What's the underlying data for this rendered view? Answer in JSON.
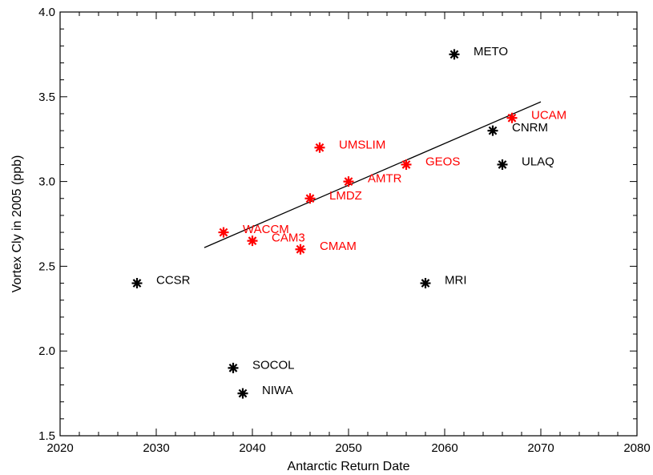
{
  "chart_data": {
    "type": "scatter",
    "xlabel": "Antarctic Return Date",
    "ylabel": "Vortex Cly in 2005 (ppb)",
    "xlim": [
      2020,
      2080
    ],
    "ylim": [
      1.5,
      4.0
    ],
    "xticks": [
      2020,
      2030,
      2040,
      2050,
      2060,
      2070,
      2080
    ],
    "yticks": [
      1.5,
      2.0,
      2.5,
      3.0,
      3.5,
      4.0
    ],
    "ytick_labels": [
      "1.5",
      "2.0",
      "2.5",
      "3.0",
      "3.5",
      "4.0"
    ],
    "grid": false,
    "colors": {
      "red": "#ff0000",
      "black": "#000000"
    },
    "points": [
      {
        "name": "METO",
        "x": 2061.0,
        "y": 3.75,
        "color": "black"
      },
      {
        "name": "UCAM",
        "x": 2067.0,
        "y": 3.375,
        "color": "red"
      },
      {
        "name": "CNRM",
        "x": 2065.0,
        "y": 3.3,
        "color": "black"
      },
      {
        "name": "ULAQ",
        "x": 2066.0,
        "y": 3.1,
        "color": "black"
      },
      {
        "name": "UMSLIM",
        "x": 2047.0,
        "y": 3.2,
        "color": "red"
      },
      {
        "name": "GEOS",
        "x": 2056.0,
        "y": 3.1,
        "color": "red"
      },
      {
        "name": "AMTR",
        "x": 2050.0,
        "y": 3.0,
        "color": "red"
      },
      {
        "name": "LMDZ",
        "x": 2046.0,
        "y": 2.9,
        "color": "red"
      },
      {
        "name": "WACCM",
        "x": 2037.0,
        "y": 2.7,
        "color": "red"
      },
      {
        "name": "CAM3",
        "x": 2040.0,
        "y": 2.65,
        "color": "red"
      },
      {
        "name": "CMAM",
        "x": 2045.0,
        "y": 2.6,
        "color": "red"
      },
      {
        "name": "CCSR",
        "x": 2028.0,
        "y": 2.4,
        "color": "black"
      },
      {
        "name": "MRI",
        "x": 2058.0,
        "y": 2.4,
        "color": "black"
      },
      {
        "name": "SOCOL",
        "x": 2038.0,
        "y": 1.9,
        "color": "black"
      },
      {
        "name": "NIWA",
        "x": 2039.0,
        "y": 1.75,
        "color": "black"
      }
    ],
    "fit_line": {
      "x": [
        2035.0,
        2070.0
      ],
      "y": [
        2.61,
        3.47
      ]
    }
  }
}
